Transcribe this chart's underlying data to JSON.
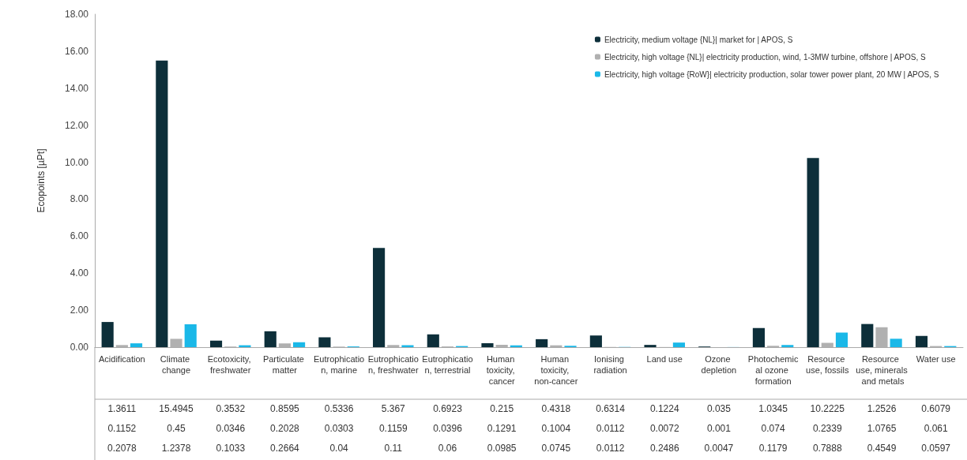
{
  "chart_data": {
    "type": "bar",
    "ylabel": "Ecopoints [µPt]",
    "categories": [
      "Acidification",
      "Climate change",
      "Ecotoxicity, freshwater",
      "Particulate matter",
      "Eutrophication, marine",
      "Eutrophication, freshwater",
      "Eutrophication, terrestrial",
      "Human toxicity, cancer",
      "Human toxicity, non-cancer",
      "Ionising radiation",
      "Land use",
      "Ozone depletion",
      "Photochemical ozone formation",
      "Resource use, fossils",
      "Resource use, minerals and metals",
      "Water use"
    ],
    "series": [
      {
        "name": "Electricity, medium voltage {NL}| market for | APOS, S",
        "color": "#0d2f3a",
        "values": [
          1.3611,
          15.4945,
          0.3532,
          0.8595,
          0.5336,
          5.367,
          0.6923,
          0.215,
          0.4318,
          0.6314,
          0.1224,
          0.035,
          1.0345,
          10.2225,
          1.2526,
          0.6079
        ]
      },
      {
        "name": "Electricity, high voltage {NL}| electricity production, wind, 1-3MW turbine, offshore | APOS, S",
        "color": "#b0b0b0",
        "values": [
          0.1152,
          0.45,
          0.0346,
          0.2028,
          0.0303,
          0.1159,
          0.0396,
          0.1291,
          0.1004,
          0.0112,
          0.0072,
          0.001,
          0.074,
          0.2339,
          1.0765,
          0.061
        ]
      },
      {
        "name": "Electricity, high voltage {RoW}| electricity production, solar tower power plant, 20 MW | APOS, S",
        "color": "#1ab8e8",
        "values": [
          0.2078,
          1.2378,
          0.1033,
          0.2664,
          0.04,
          0.11,
          0.06,
          0.0985,
          0.0745,
          0.0112,
          0.2486,
          0.0047,
          0.1179,
          0.7888,
          0.4549,
          0.0597
        ]
      }
    ],
    "ylim": [
      0,
      18
    ],
    "yticks": [
      {
        "value": 0,
        "label": "0.00"
      },
      {
        "value": 2,
        "label": "2.00"
      },
      {
        "value": 4,
        "label": "4.00"
      },
      {
        "value": 6,
        "label": "6.00"
      },
      {
        "value": 8,
        "label": "8.00"
      },
      {
        "value": 10,
        "label": "10.00"
      },
      {
        "value": 12,
        "label": "12.00"
      },
      {
        "value": 14,
        "label": "14.00"
      },
      {
        "value": 16,
        "label": "16.00"
      },
      {
        "value": 18,
        "label": "18.00"
      }
    ],
    "grid": false,
    "legend": "top right",
    "data_labels": true
  }
}
